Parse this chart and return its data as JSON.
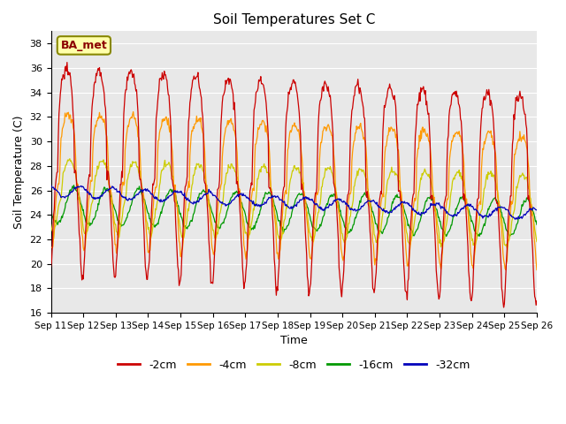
{
  "title": "Soil Temperatures Set C",
  "xlabel": "Time",
  "ylabel": "Soil Temperature (C)",
  "ylim": [
    16,
    39
  ],
  "yticks": [
    16,
    18,
    20,
    22,
    24,
    26,
    28,
    30,
    32,
    34,
    36,
    38
  ],
  "x_labels": [
    "Sep 11",
    "Sep 12",
    "Sep 13",
    "Sep 14",
    "Sep 15",
    "Sep 16",
    "Sep 17",
    "Sep 18",
    "Sep 19",
    "Sep 20",
    "Sep 21",
    "Sep 22",
    "Sep 23",
    "Sep 24",
    "Sep 25",
    "Sep 26"
  ],
  "annotation_text": "BA_met",
  "background_color": "#e8e8e8",
  "series_colors": [
    "#cc0000",
    "#ff9900",
    "#cccc00",
    "#009900",
    "#0000bb"
  ],
  "series_labels": [
    "-2cm",
    "-4cm",
    "-8cm",
    "-16cm",
    "-32cm"
  ],
  "num_points_per_day": 48,
  "n_days": 15
}
